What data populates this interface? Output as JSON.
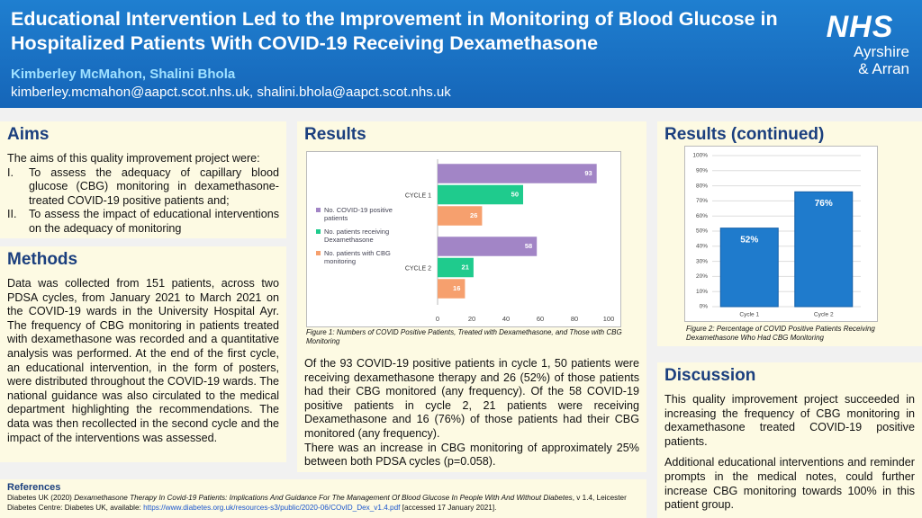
{
  "header": {
    "title": "Educational Intervention Led to the Improvement in Monitoring of Blood Glucose in Hospitalized Patients With COVID-19 Receiving Dexamethasone",
    "authors": "Kimberley McMahon, Shalini Bhola",
    "emails": "kimberley.mcmahon@aapct.scot.nhs.uk, shalini.bhola@aapct.scot.nhs.uk",
    "logo": {
      "mark": "NHS",
      "line1": "Ayrshire",
      "line2": "& Arran"
    }
  },
  "aims": {
    "heading": "Aims",
    "intro": "The aims of this quality improvement project were:",
    "items": [
      {
        "marker": "I.",
        "text": "To assess the adequacy of capillary blood glucose (CBG) monitoring in dexamethasone-treated COVID-19 positive patients and;"
      },
      {
        "marker": "II.",
        "text": "To assess the impact of educational interventions on the adequacy of monitoring"
      }
    ]
  },
  "methods": {
    "heading": "Methods",
    "text": "Data was collected from 151 patients, across two PDSA cycles, from January 2021 to March 2021 on the COVID-19 wards in the University Hospital Ayr. The frequency of CBG monitoring in patients treated with dexamethasone was recorded and a quantitative analysis was performed. At the end of the first cycle, an educational intervention, in the form of posters, were distributed throughout the COVID-19 wards. The national guidance was also circulated to the medical department highlighting the recommendations. The data was then recollected in the second cycle and the impact of the interventions was assessed."
  },
  "results": {
    "heading": "Results",
    "caption": "Figure 1: Numbers of COVID Positive Patients, Treated with Dexamethasone, and Those with CBG Monitoring",
    "paragraphs": [
      "Of the 93 COVID-19 positive patients in cycle 1, 50 patients were receiving dexamethasone therapy and 26 (52%) of those patients had their CBG monitored (any frequency). Of the 58 COVID-19 positive patients in cycle 2, 21 patients were receiving Dexamethasone and 16 (76%) of those patients had their CBG monitored (any frequency).",
      "There was an increase in CBG monitoring of approximately 25% between both PDSA cycles (p=0.058)."
    ]
  },
  "results_continued": {
    "heading": "Results (continued)",
    "caption": "Figure 2: Percentage of COVID Positive Patients Receiving Dexamethasone Who Had CBG Monitoring"
  },
  "chart_data": [
    {
      "type": "hbar",
      "categories": [
        "CYCLE 1",
        "CYCLE 2"
      ],
      "series": [
        {
          "name": "No. COVID-19 positive patients",
          "color": "#a285c6",
          "values": [
            93,
            58
          ]
        },
        {
          "name": "No. patients receiving Dexamethasone",
          "color": "#1fcb8d",
          "values": [
            50,
            21
          ]
        },
        {
          "name": "No. patients with CBG monitoring",
          "color": "#f6a06e",
          "values": [
            26,
            16
          ]
        }
      ],
      "xlim": [
        0,
        100
      ],
      "xticks": [
        0,
        20,
        40,
        60,
        80,
        100
      ],
      "legend": "left"
    },
    {
      "type": "bar",
      "categories": [
        "Cycle 1",
        "Cycle 2"
      ],
      "values": [
        52,
        76
      ],
      "value_labels": [
        "52%",
        "76%"
      ],
      "color": "#1f7bcc",
      "ylim": [
        0,
        100
      ],
      "grid": true,
      "yticks": [
        {
          "value": 0,
          "label": "0%"
        },
        {
          "value": 10,
          "label": "10%"
        },
        {
          "value": 20,
          "label": "20%"
        },
        {
          "value": 30,
          "label": "30%"
        },
        {
          "value": 40,
          "label": "40%"
        },
        {
          "value": 50,
          "label": "50%"
        },
        {
          "value": 60,
          "label": "60%"
        },
        {
          "value": 70,
          "label": "70%"
        },
        {
          "value": 80,
          "label": "80%"
        },
        {
          "value": 90,
          "label": "90%"
        },
        {
          "value": 100,
          "label": "100%"
        }
      ]
    }
  ],
  "discussion": {
    "heading": "Discussion",
    "paragraphs": [
      "This quality improvement project succeeded in increasing the frequency of CBG monitoring in dexamethasone treated COVID-19 positive patients.",
      "Additional educational interventions and reminder prompts in the medical notes, could further increase CBG monitoring towards 100% in this patient group."
    ]
  },
  "references": {
    "heading": "References",
    "parts": [
      "Diabetes UK (2020) ",
      "Dexamethasone Therapy In Covid-19 Patients: Implications And Guidance For The Management Of Blood Glucose In People With And Without Diabetes",
      ", v 1.4, Leicester Diabetes Centre: Diabetes UK, available: ",
      "https://www.diabetes.org.uk/resources-s3/public/2020-06/COvID_Dex_v1.4.pdf",
      " [accessed 17 January 2021]."
    ]
  }
}
